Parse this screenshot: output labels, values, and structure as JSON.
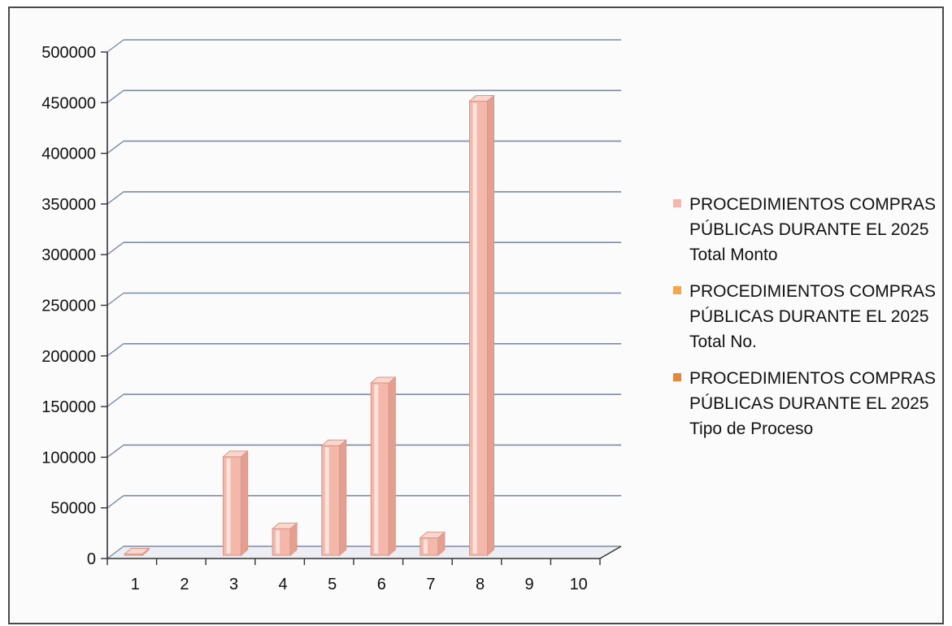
{
  "chart_data": {
    "type": "bar",
    "title": "",
    "xlabel": "",
    "ylabel": "",
    "categories": [
      "1",
      "2",
      "3",
      "4",
      "5",
      "6",
      "7",
      "8",
      "9",
      "10"
    ],
    "series": [
      {
        "name": "PROCEDIMIENTOS COMPRAS\nPÚBLICAS DURANTE EL 2025\nTotal  Monto",
        "color": "#f3b8aa",
        "values": [
          6000,
          0,
          102000,
          31000,
          113000,
          175000,
          22000,
          453000,
          0,
          0
        ]
      },
      {
        "name": "PROCEDIMIENTOS COMPRAS\nPÚBLICAS DURANTE EL 2025\nTotal No.",
        "color": "#f4a64a",
        "values": [
          0,
          0,
          0,
          0,
          0,
          0,
          0,
          0,
          0,
          0
        ]
      },
      {
        "name": "PROCEDIMIENTOS COMPRAS\nPÚBLICAS DURANTE EL 2025\nTipo de Proceso",
        "color": "#e2873d",
        "values": [
          0,
          0,
          0,
          0,
          0,
          0,
          0,
          0,
          0,
          0
        ]
      }
    ],
    "ylim": [
      0,
      500000
    ],
    "yticks": [
      "0",
      "50000",
      "100000",
      "150000",
      "200000",
      "250000",
      "300000",
      "350000",
      "400000",
      "450000",
      "500000"
    ],
    "grid": true,
    "legend_position": "right",
    "style": "3d"
  }
}
